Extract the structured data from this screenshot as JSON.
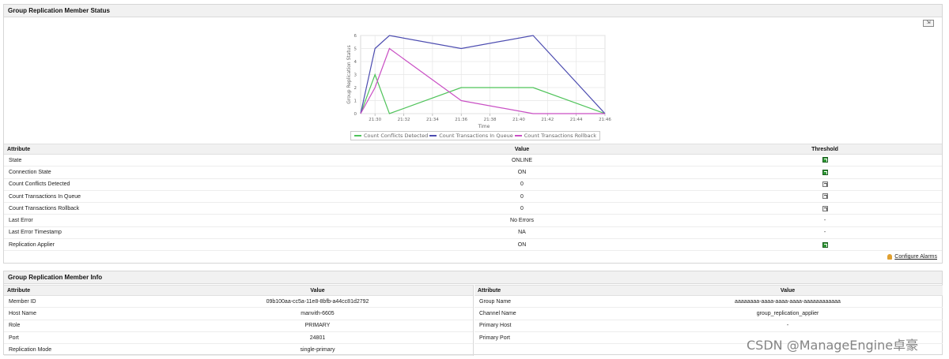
{
  "status_panel": {
    "title": "Group Replication Member Status",
    "export_label": "⇲",
    "attributes": [
      {
        "name": "State",
        "value": "ONLINE",
        "threshold": "green"
      },
      {
        "name": "Connection State",
        "value": "ON",
        "threshold": "green"
      },
      {
        "name": "Count Conflicts Detected",
        "value": "0",
        "threshold": "gray"
      },
      {
        "name": "Count Transactions In Queue",
        "value": "0",
        "threshold": "gray"
      },
      {
        "name": "Count Transactions Rollback",
        "value": "0",
        "threshold": "gray"
      },
      {
        "name": "Last Error",
        "value": "No Errors",
        "threshold": "-"
      },
      {
        "name": "Last Error Timestamp",
        "value": "NA",
        "threshold": "-"
      },
      {
        "name": "Replication Applier",
        "value": "ON",
        "threshold": "green"
      }
    ],
    "headers": {
      "attribute": "Attribute",
      "value": "Value",
      "threshold": "Threshold"
    },
    "configure_label": "Configure Alarms"
  },
  "chart_data": {
    "type": "line",
    "xlabel": "Time",
    "ylabel": "Group Replication Status",
    "x_ticks": [
      "21:30",
      "21:32",
      "21:34",
      "21:36",
      "21:38",
      "21:40",
      "21:42",
      "21:44",
      "21:46"
    ],
    "x_tick_minutes": [
      30,
      32,
      34,
      36,
      38,
      40,
      42,
      44,
      46
    ],
    "xlim": [
      29,
      46
    ],
    "ylim": [
      0,
      6
    ],
    "y_ticks": [
      0,
      1,
      2,
      3,
      4,
      5,
      6
    ],
    "grid": true,
    "legend": "bottom",
    "series": [
      {
        "name": "Count Conflicts Detected",
        "color": "#4fc35a",
        "points": [
          [
            29,
            0
          ],
          [
            30,
            3
          ],
          [
            31,
            0
          ],
          [
            36,
            2
          ],
          [
            41,
            2
          ],
          [
            46,
            0
          ]
        ]
      },
      {
        "name": "Count Transactions In Queue",
        "color": "#4c4cb0",
        "points": [
          [
            29,
            0
          ],
          [
            30,
            5
          ],
          [
            31,
            6
          ],
          [
            36,
            5
          ],
          [
            41,
            6
          ],
          [
            46,
            0
          ]
        ]
      },
      {
        "name": "Count Transactions Rollback",
        "color": "#c94fc4",
        "points": [
          [
            29,
            0
          ],
          [
            30,
            2
          ],
          [
            31,
            5
          ],
          [
            36,
            1
          ],
          [
            41,
            0
          ],
          [
            46,
            0
          ]
        ]
      }
    ]
  },
  "info_panel": {
    "title": "Group Replication Member Info",
    "headers": {
      "attribute": "Attribute",
      "value": "Value"
    },
    "left": [
      {
        "name": "Member ID",
        "value": "09b100aa-cc5a-11e8-8bfb-a44cc81d2792"
      },
      {
        "name": "Host Name",
        "value": "manvith-6605"
      },
      {
        "name": "Role",
        "value": "PRIMARY"
      },
      {
        "name": "Port",
        "value": "24801"
      },
      {
        "name": "Replication Mode",
        "value": "single-primary"
      }
    ],
    "right": [
      {
        "name": "Group Name",
        "value": "aaaaaaaa-aaaa-aaaa-aaaa-aaaaaaaaaaaa"
      },
      {
        "name": "Channel Name",
        "value": "group_replication_applier"
      },
      {
        "name": "Primary Host",
        "value": "-"
      },
      {
        "name": "Primary Port",
        "value": ""
      }
    ]
  },
  "watermark": "CSDN @ManageEngine卓豪"
}
